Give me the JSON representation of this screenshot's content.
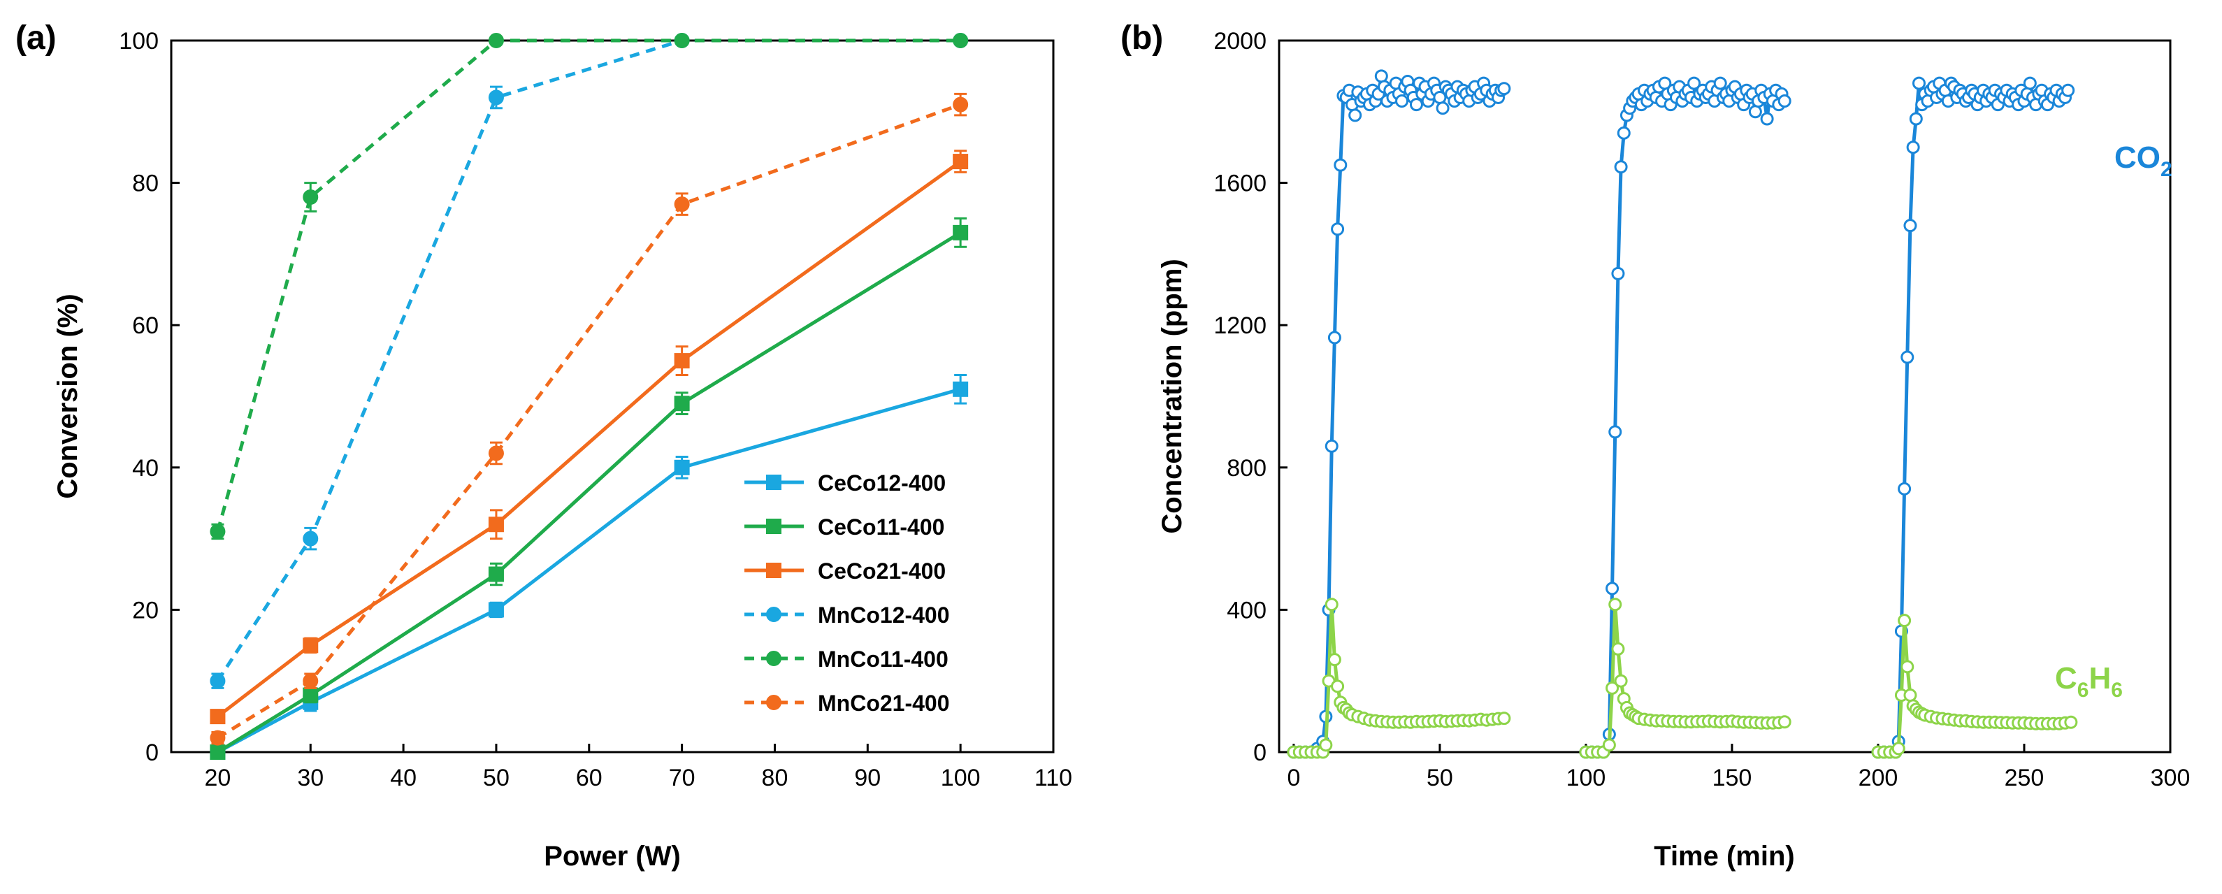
{
  "chart_data": [
    {
      "panel_label": "(a)",
      "type": "line",
      "xlabel": "Power (W)",
      "ylabel": "Conversion (%)",
      "xlim": [
        15,
        110
      ],
      "ylim": [
        0,
        100
      ],
      "xticks": [
        20,
        30,
        40,
        50,
        60,
        70,
        80,
        90,
        100,
        110
      ],
      "yticks": [
        0,
        20,
        40,
        60,
        80,
        100
      ],
      "legend_position": "bottom-right",
      "x": [
        20,
        30,
        50,
        70,
        100
      ],
      "series": [
        {
          "name": "CeCo12-400",
          "color": "#1aa7e0",
          "marker": "square",
          "dash": "solid",
          "values": [
            0,
            7,
            20,
            40,
            51
          ],
          "errors": [
            0.8,
            1.2,
            1.0,
            1.5,
            2.0
          ]
        },
        {
          "name": "CeCo11-400",
          "color": "#1fab4b",
          "marker": "square",
          "dash": "solid",
          "values": [
            0,
            8,
            25,
            49,
            73
          ],
          "errors": [
            0.8,
            1.0,
            1.5,
            1.5,
            2.0
          ]
        },
        {
          "name": "CeCo21-400",
          "color": "#f26b1d",
          "marker": "square",
          "dash": "solid",
          "values": [
            5,
            15,
            32,
            55,
            83
          ],
          "errors": [
            0.8,
            1.0,
            2.0,
            2.0,
            1.5
          ]
        },
        {
          "name": "MnCo12-400",
          "color": "#1aa7e0",
          "marker": "circle",
          "dash": "dashed",
          "values": [
            10,
            30,
            92,
            100,
            100
          ],
          "errors": [
            1.0,
            1.5,
            1.5,
            0.5,
            0.5
          ]
        },
        {
          "name": "MnCo11-400",
          "color": "#1fab4b",
          "marker": "circle",
          "dash": "dashed",
          "values": [
            31,
            78,
            100,
            100,
            100
          ],
          "errors": [
            1.0,
            2.0,
            0.5,
            0.5,
            0.5
          ]
        },
        {
          "name": "MnCo21-400",
          "color": "#f26b1d",
          "marker": "circle",
          "dash": "dashed",
          "values": [
            2,
            10,
            42,
            77,
            91
          ],
          "errors": [
            0.8,
            1.0,
            1.5,
            1.5,
            1.5
          ]
        }
      ]
    },
    {
      "panel_label": "(b)",
      "type": "line",
      "xlabel": "Time (min)",
      "ylabel": "Concentration (ppm)",
      "xlim": [
        -5,
        300
      ],
      "ylim": [
        0,
        2000
      ],
      "xticks": [
        0,
        50,
        100,
        150,
        200,
        250,
        300
      ],
      "yticks": [
        0,
        400,
        800,
        1200,
        1600,
        2000
      ],
      "annotations": [
        {
          "text": "CO",
          "sub": "2",
          "color": "#1a86d9",
          "position": "upper-right"
        },
        {
          "text": "C",
          "sub": "6",
          "text2": "H",
          "sub2": "6",
          "color": "#8dd449",
          "position": "lower-right"
        }
      ],
      "series": [
        {
          "name": "CO2",
          "color": "#1a86d9",
          "segments": [
            {
              "x": [
                0,
                2,
                4,
                6,
                8,
                10,
                11,
                12,
                13,
                14,
                15,
                16,
                17,
                18,
                19,
                20,
                21,
                22,
                23,
                24,
                25,
                26,
                27,
                28,
                29,
                30,
                31,
                32,
                33,
                34,
                35,
                36,
                37,
                38,
                39,
                40,
                41,
                42,
                43,
                44,
                45,
                46,
                47,
                48,
                49,
                50,
                51,
                52,
                53,
                54,
                55,
                56,
                57,
                58,
                59,
                60,
                61,
                62,
                63,
                64,
                65,
                66,
                67,
                68,
                69,
                70,
                71,
                72
              ],
              "y": [
                0,
                0,
                0,
                0,
                10,
                30,
                100,
                400,
                860,
                1165,
                1470,
                1650,
                1845,
                1840,
                1860,
                1820,
                1790,
                1855,
                1830,
                1840,
                1850,
                1820,
                1860,
                1830,
                1850,
                1900,
                1870,
                1830,
                1860,
                1840,
                1880,
                1850,
                1830,
                1870,
                1885,
                1860,
                1840,
                1820,
                1880,
                1850,
                1870,
                1830,
                1850,
                1880,
                1860,
                1840,
                1810,
                1870,
                1860,
                1850,
                1830,
                1870,
                1840,
                1860,
                1850,
                1830,
                1860,
                1870,
                1840,
                1850,
                1880,
                1860,
                1830,
                1850,
                1860,
                1840,
                1860,
                1865
              ]
            },
            {
              "x": [
                100,
                102,
                104,
                106,
                108,
                109,
                110,
                111,
                112,
                113,
                114,
                115,
                116,
                117,
                118,
                119,
                120,
                121,
                122,
                123,
                124,
                125,
                126,
                127,
                128,
                129,
                130,
                131,
                132,
                133,
                134,
                135,
                136,
                137,
                138,
                139,
                140,
                141,
                142,
                143,
                144,
                145,
                146,
                147,
                148,
                149,
                150,
                151,
                152,
                153,
                154,
                155,
                156,
                157,
                158,
                159,
                160,
                161,
                162,
                163,
                164,
                165,
                166,
                167,
                168
              ],
              "y": [
                0,
                0,
                0,
                0,
                50,
                460,
                900,
                1345,
                1645,
                1740,
                1790,
                1810,
                1830,
                1840,
                1850,
                1820,
                1860,
                1830,
                1850,
                1860,
                1840,
                1870,
                1830,
                1880,
                1850,
                1820,
                1860,
                1840,
                1870,
                1830,
                1850,
                1860,
                1840,
                1880,
                1830,
                1850,
                1860,
                1840,
                1850,
                1870,
                1830,
                1860,
                1880,
                1840,
                1850,
                1830,
                1860,
                1870,
                1840,
                1850,
                1820,
                1860,
                1840,
                1850,
                1800,
                1830,
                1860,
                1840,
                1780,
                1850,
                1830,
                1860,
                1820,
                1850,
                1830
              ]
            },
            {
              "x": [
                200,
                202,
                204,
                206,
                207,
                208,
                209,
                210,
                211,
                212,
                213,
                214,
                215,
                216,
                217,
                218,
                219,
                220,
                221,
                222,
                223,
                224,
                225,
                226,
                227,
                228,
                229,
                230,
                231,
                232,
                233,
                234,
                235,
                236,
                237,
                238,
                239,
                240,
                241,
                242,
                243,
                244,
                245,
                246,
                247,
                248,
                249,
                250,
                251,
                252,
                253,
                254,
                255,
                256,
                257,
                258,
                259,
                260,
                261,
                262,
                263,
                264,
                265
              ],
              "y": [
                0,
                0,
                0,
                0,
                30,
                340,
                740,
                1110,
                1480,
                1700,
                1780,
                1880,
                1820,
                1850,
                1830,
                1860,
                1870,
                1840,
                1880,
                1850,
                1860,
                1830,
                1880,
                1870,
                1840,
                1860,
                1850,
                1830,
                1840,
                1860,
                1850,
                1820,
                1840,
                1860,
                1830,
                1850,
                1840,
                1860,
                1820,
                1850,
                1840,
                1860,
                1830,
                1850,
                1840,
                1820,
                1860,
                1830,
                1850,
                1880,
                1840,
                1820,
                1850,
                1860,
                1830,
                1820,
                1850,
                1840,
                1860,
                1830,
                1850,
                1840,
                1860
              ]
            }
          ]
        },
        {
          "name": "C6H6",
          "color": "#8dd449",
          "segments": [
            {
              "x": [
                0,
                2,
                4,
                6,
                8,
                10,
                11,
                12,
                13,
                14,
                15,
                16,
                17,
                18,
                19,
                20,
                22,
                24,
                26,
                28,
                30,
                32,
                34,
                36,
                38,
                40,
                42,
                44,
                46,
                48,
                50,
                52,
                54,
                56,
                58,
                60,
                62,
                64,
                66,
                68,
                70,
                72
              ],
              "y": [
                0,
                0,
                0,
                0,
                0,
                0,
                20,
                200,
                415,
                260,
                185,
                140,
                125,
                120,
                110,
                105,
                100,
                95,
                90,
                88,
                86,
                85,
                84,
                84,
                85,
                84,
                86,
                85,
                86,
                87,
                88,
                86,
                87,
                88,
                89,
                88,
                90,
                92,
                90,
                92,
                94,
                95
              ]
            },
            {
              "x": [
                100,
                102,
                104,
                106,
                108,
                109,
                110,
                111,
                112,
                113,
                114,
                115,
                116,
                117,
                118,
                120,
                122,
                124,
                126,
                128,
                130,
                132,
                134,
                136,
                138,
                140,
                142,
                144,
                146,
                148,
                150,
                152,
                154,
                156,
                158,
                160,
                162,
                164,
                166,
                168
              ],
              "y": [
                0,
                0,
                0,
                0,
                20,
                180,
                415,
                290,
                200,
                150,
                125,
                110,
                105,
                100,
                95,
                92,
                90,
                88,
                88,
                87,
                86,
                86,
                85,
                85,
                86,
                86,
                87,
                86,
                85,
                86,
                87,
                85,
                84,
                84,
                83,
                82,
                82,
                82,
                83,
                85
              ]
            },
            {
              "x": [
                200,
                202,
                204,
                206,
                207,
                208,
                209,
                210,
                211,
                212,
                213,
                214,
                215,
                216,
                218,
                220,
                222,
                224,
                226,
                228,
                230,
                232,
                234,
                236,
                238,
                240,
                242,
                244,
                246,
                248,
                250,
                252,
                254,
                256,
                258,
                260,
                262,
                264,
                266
              ],
              "y": [
                0,
                0,
                0,
                0,
                10,
                160,
                370,
                240,
                160,
                130,
                120,
                112,
                108,
                104,
                100,
                96,
                94,
                92,
                90,
                88,
                88,
                86,
                85,
                84,
                84,
                84,
                83,
                83,
                82,
                82,
                82,
                81,
                80,
                80,
                80,
                80,
                80,
                82,
                84
              ]
            }
          ]
        }
      ]
    }
  ]
}
